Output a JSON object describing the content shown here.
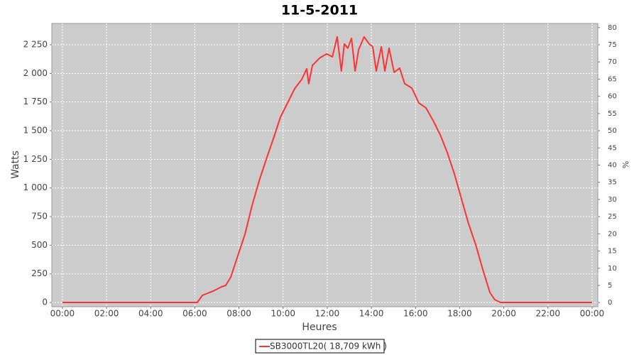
{
  "chart_data": {
    "type": "line",
    "title": "11-5-2011",
    "x_label": "Heures",
    "y_label": "Watts",
    "y2_label": "%",
    "x": [
      0,
      6.11,
      6.34,
      6.82,
      7.2,
      7.4,
      7.63,
      7.95,
      8.27,
      8.59,
      8.91,
      9.23,
      9.56,
      9.88,
      10.2,
      10.52,
      10.84,
      11.07,
      11.16,
      11.33,
      11.65,
      11.97,
      12.23,
      12.45,
      12.64,
      12.77,
      12.93,
      13.1,
      13.26,
      13.42,
      13.67,
      13.9,
      14.06,
      14.22,
      14.45,
      14.61,
      14.8,
      15.03,
      15.28,
      15.51,
      15.83,
      16.15,
      16.47,
      16.8,
      17.12,
      17.44,
      17.76,
      18.08,
      18.4,
      18.73,
      19.05,
      19.37,
      19.59,
      19.85,
      24
    ],
    "series": [
      {
        "name": "SB3000TL20( 18,709 kWh )",
        "color": "#ff3333",
        "values": [
          0,
          0,
          62,
          99,
          136,
          149,
          223,
          409,
          595,
          843,
          1060,
          1246,
          1432,
          1618,
          1742,
          1866,
          1947,
          2040,
          1910,
          2071,
          2133,
          2170,
          2145,
          2319,
          2021,
          2257,
          2220,
          2306,
          2021,
          2207,
          2319,
          2257,
          2232,
          2021,
          2232,
          2021,
          2220,
          2009,
          2046,
          1910,
          1872,
          1742,
          1699,
          1587,
          1463,
          1308,
          1122,
          905,
          688,
          502,
          285,
          87,
          25,
          0,
          0
        ]
      }
    ],
    "xlim": [
      -0.48,
      24.26
    ],
    "xticks": [
      {
        "value": 0,
        "label": "00:00"
      },
      {
        "value": 2,
        "label": "02:00"
      },
      {
        "value": 4,
        "label": "04:00"
      },
      {
        "value": 6,
        "label": "06:00"
      },
      {
        "value": 8,
        "label": "08:00"
      },
      {
        "value": 10,
        "label": "10:00"
      },
      {
        "value": 12,
        "label": "12:00"
      },
      {
        "value": 14,
        "label": "14:00"
      },
      {
        "value": 16,
        "label": "16:00"
      },
      {
        "value": 18,
        "label": "18:00"
      },
      {
        "value": 20,
        "label": "20:00"
      },
      {
        "value": 22,
        "label": "22:00"
      },
      {
        "value": 24,
        "label": "00:00"
      }
    ],
    "ylim": [
      -37,
      2436
    ],
    "yticks": [
      0,
      250,
      500,
      750,
      {
        "value": 1000,
        "label": "1 000"
      },
      {
        "value": 1250,
        "label": "1 250"
      },
      {
        "value": 1500,
        "label": "1 500"
      },
      {
        "value": 1750,
        "label": "1 750"
      },
      {
        "value": 2000,
        "label": "2 000"
      },
      {
        "value": 2250,
        "label": "2 250"
      }
    ],
    "y2lim": [
      -1.2,
      81.2
    ],
    "y2ticks": [
      0,
      5,
      10,
      15,
      20,
      25,
      30,
      35,
      40,
      45,
      50,
      55,
      60,
      65,
      70,
      75,
      80
    ],
    "grid": true,
    "legend": "bottom"
  }
}
